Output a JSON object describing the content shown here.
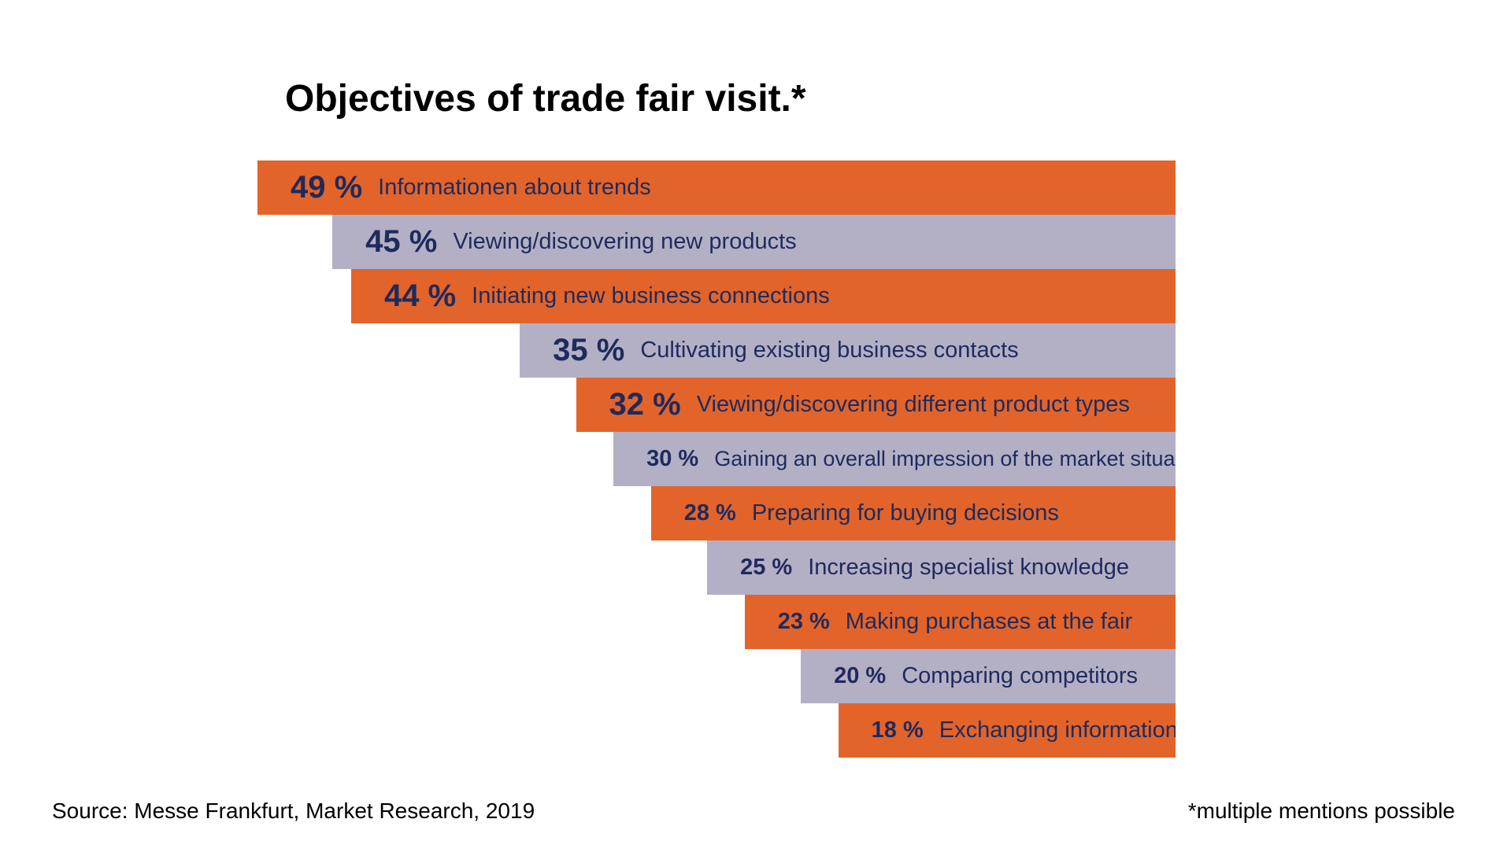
{
  "title": "Objectives of trade fair visit.*",
  "source": "Source: Messe Frankfurt, Market Research, 2019",
  "footnote": "*multiple mentions possible",
  "colors": {
    "orange": "#e2642a",
    "lilac": "#b3b0c6",
    "text": "#1f2a5c"
  },
  "chart_data": {
    "type": "bar",
    "unit": "%",
    "categories": [
      "Informationen about trends",
      "Viewing/discovering new products",
      "Initiating new business connections",
      "Cultivating existing business contacts",
      "Viewing/discovering different product types",
      "Gaining an overall impression of the market situation",
      "Preparing for buying decisions",
      "Increasing specialist knowledge",
      "Making purchases at the fair",
      "Comparing competitors",
      "Exchanging information"
    ],
    "values": [
      49,
      45,
      44,
      35,
      32,
      30,
      28,
      25,
      23,
      20,
      18
    ],
    "value_labels": [
      "49 %",
      "45 %",
      "44 %",
      "35 %",
      "32 %",
      "30 %",
      "28 %",
      "25 %",
      "23 %",
      "20 %",
      "18 %"
    ],
    "bar_colors": [
      "orange",
      "lilac",
      "orange",
      "lilac",
      "orange",
      "lilac",
      "orange",
      "lilac",
      "orange",
      "lilac",
      "orange"
    ]
  }
}
